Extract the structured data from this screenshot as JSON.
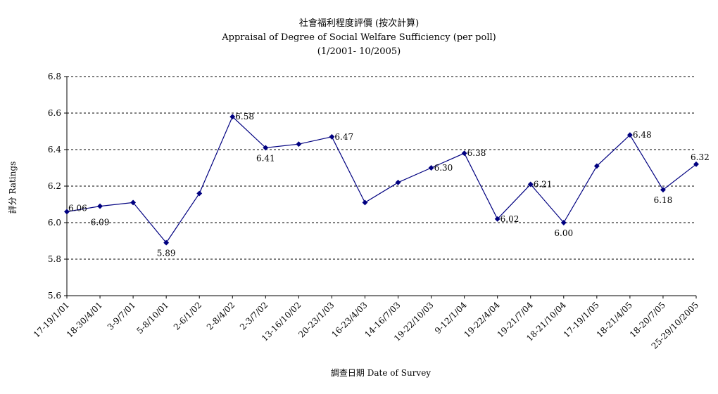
{
  "chart_data": {
    "type": "line",
    "title": "社會福利程度評價 (按次計算)",
    "subtitle": "Appraisal of Degree of Social Welfare Sufficiency (per poll)",
    "subtitle2": "(1/2001- 10/2005)",
    "xlabel": "調查日期 Date of Survey",
    "ylabel": "評分 Ratings",
    "ylim": [
      5.6,
      6.8
    ],
    "yticks": [
      "5.6",
      "5.8",
      "6.0",
      "6.2",
      "6.4",
      "6.6",
      "6.8"
    ],
    "grid": true,
    "legend": "none",
    "categories": [
      "17-19/1/01",
      "18-30/4/01",
      "3-9/7/01",
      "5-8/10/01",
      "2-6/1/02",
      "2-8/4/02",
      "2-3/7/02",
      "13-16/10/02",
      "20-23/1/03",
      "16-23/4/03",
      "14-16/7/03",
      "19-22/10/03",
      "9-12/1/04",
      "19-22/4/04",
      "19-21/7/04",
      "18-21/10/04",
      "17-19/1/05",
      "18-21/4/05",
      "18-20/7/05",
      "25-29/10/2005"
    ],
    "series": [
      {
        "values": [
          6.06,
          6.09,
          6.11,
          5.89,
          6.16,
          6.58,
          6.41,
          6.43,
          6.47,
          6.11,
          6.22,
          6.3,
          6.38,
          6.02,
          6.21,
          6.0,
          6.31,
          6.48,
          6.18,
          6.32
        ],
        "labels": [
          "6.06",
          "6.09",
          "",
          "5.89",
          "",
          "6.58",
          "6.41",
          "",
          "6.47",
          "",
          "",
          "6.30",
          "6.38",
          "6.02",
          "6.21",
          "6.00",
          "",
          "6.48",
          "6.18",
          "6.32"
        ],
        "color": "#000080"
      }
    ]
  }
}
